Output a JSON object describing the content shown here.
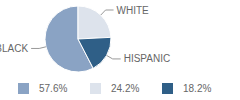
{
  "chart_data": {
    "type": "pie",
    "categories": [
      "BLACK",
      "WHITE",
      "HISPANIC"
    ],
    "values": [
      57.6,
      24.2,
      18.2
    ],
    "value_labels": [
      "57.6%",
      "24.2%",
      "18.2%"
    ],
    "colors": [
      "#8aa3c4",
      "#dde3ec",
      "#2f5f87"
    ],
    "legend": "bottom"
  }
}
